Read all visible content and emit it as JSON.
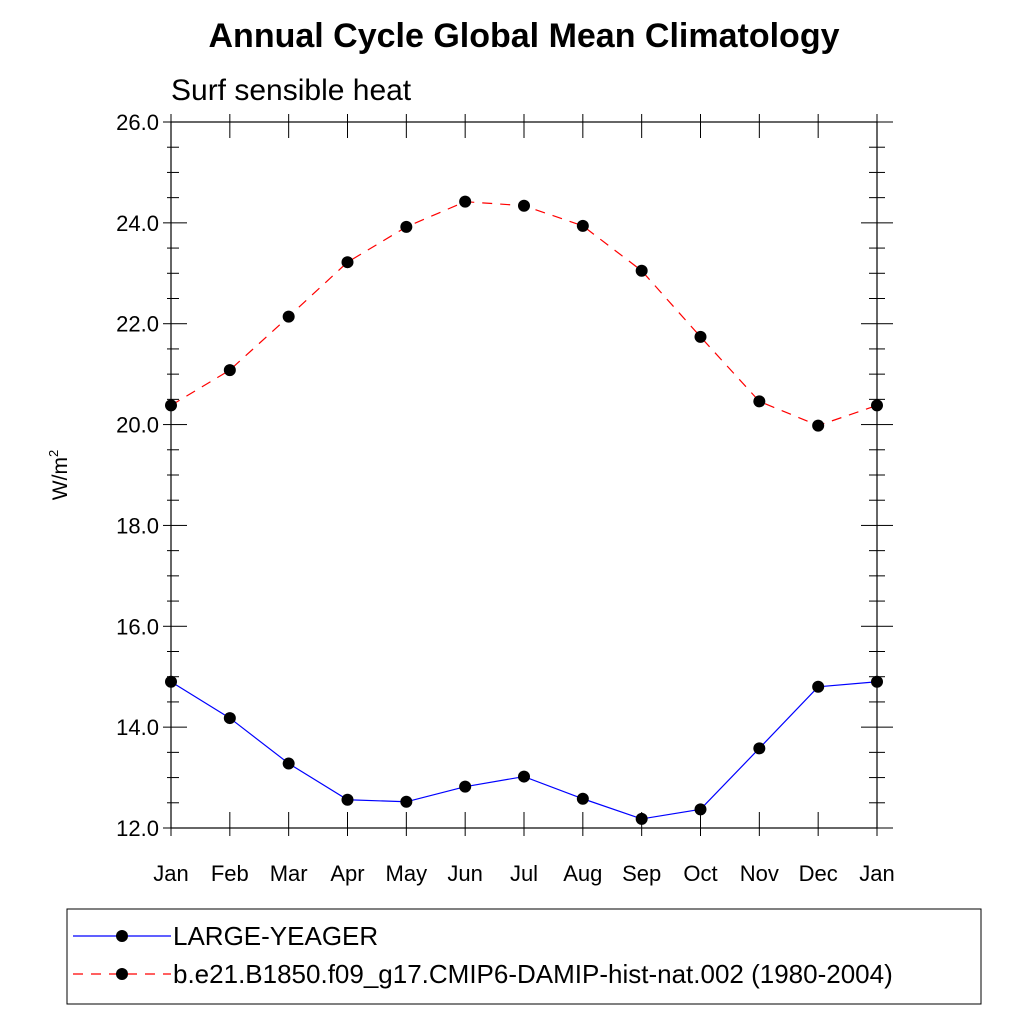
{
  "chart_data": {
    "type": "line",
    "title": "Annual Cycle Global Mean Climatology",
    "subtitle": "Surf sensible heat",
    "ylabel": "W/m",
    "ylabel_superscript": "2",
    "xlabel": "",
    "categories": [
      "Jan",
      "Feb",
      "Mar",
      "Apr",
      "May",
      "Jun",
      "Jul",
      "Aug",
      "Sep",
      "Oct",
      "Nov",
      "Dec",
      "Jan"
    ],
    "ylim": [
      12.0,
      26.0
    ],
    "y_ticks": [
      "12.0",
      "14.0",
      "16.0",
      "18.0",
      "20.0",
      "22.0",
      "24.0",
      "26.0"
    ],
    "y_minor_step": 0.5,
    "grid": false,
    "legend_position": "bottom",
    "series": [
      {
        "name": "LARGE-YEAGER",
        "color": "#0000ff",
        "dash": "solid",
        "marker": "filled-circle",
        "values": [
          14.9,
          14.18,
          13.28,
          12.56,
          12.52,
          12.82,
          13.02,
          12.58,
          12.18,
          12.37,
          13.58,
          14.8,
          14.9
        ]
      },
      {
        "name": "b.e21.B1850.f09_g17.CMIP6-DAMIP-hist-nat.002 (1980-2004)",
        "color": "#ff0000",
        "dash": "dashed",
        "marker": "filled-circle",
        "values": [
          20.38,
          21.08,
          22.14,
          23.22,
          23.92,
          24.42,
          24.34,
          23.94,
          23.05,
          21.74,
          20.46,
          19.98,
          20.38
        ]
      }
    ]
  }
}
